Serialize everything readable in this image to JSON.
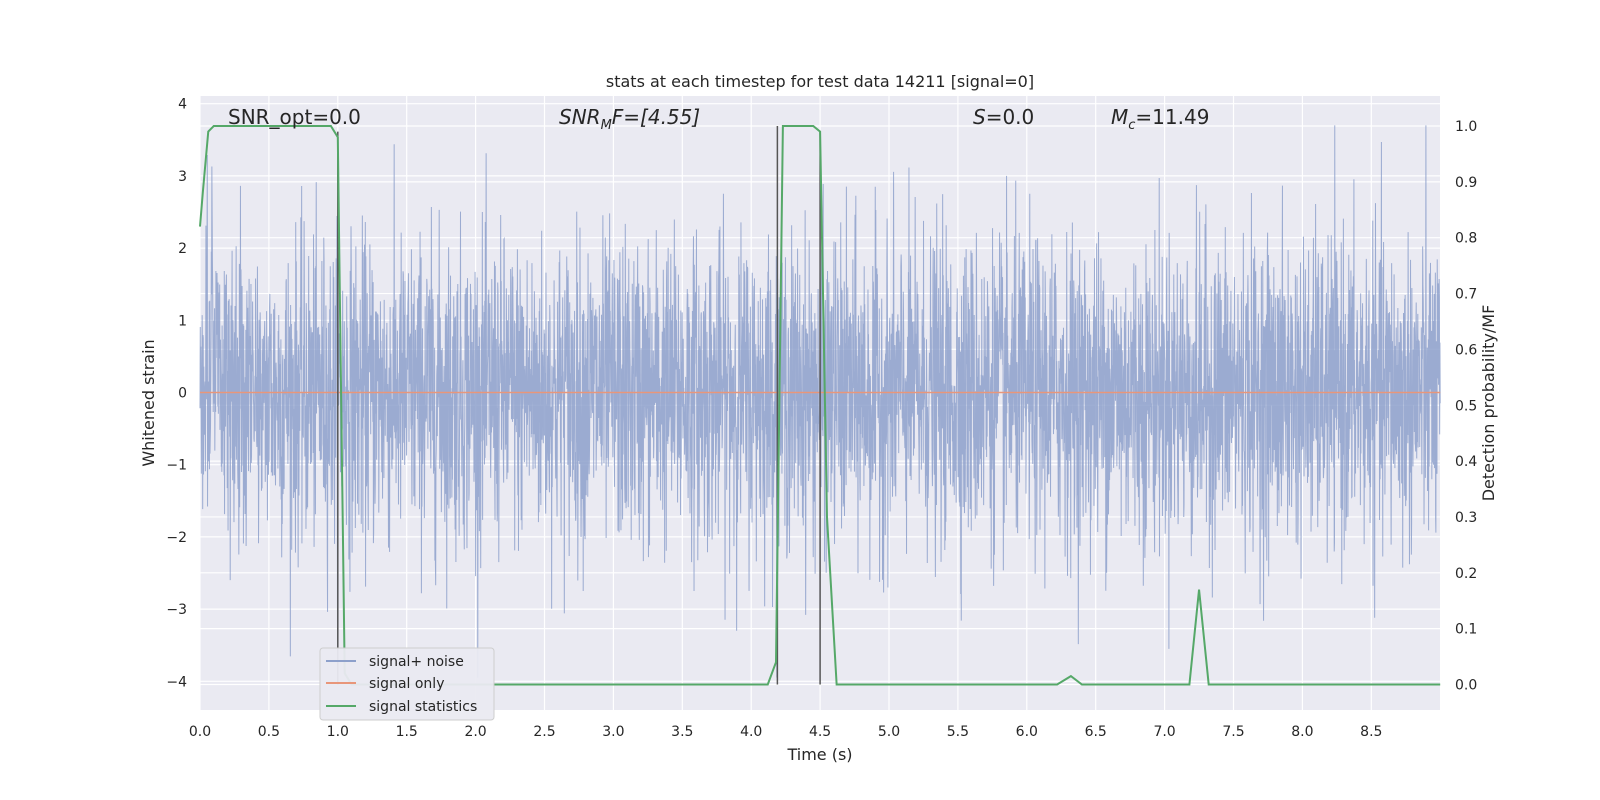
{
  "chart_data": {
    "type": "line",
    "title": "stats at each timestep for test data 14211 [signal=0]",
    "xlabel": "Time (s)",
    "ylabel_left": "Whitened strain",
    "ylabel_right": "Detection probability/MF",
    "xlim": [
      0.0,
      9.0
    ],
    "ylim_left": [
      -4.4,
      4.1
    ],
    "ylim_right": [
      -0.05,
      1.035
    ],
    "xticks": [
      "0.0",
      "0.5",
      "1.0",
      "1.5",
      "2.0",
      "2.5",
      "3.0",
      "3.5",
      "4.0",
      "4.5",
      "5.0",
      "5.5",
      "6.0",
      "6.5",
      "7.0",
      "7.5",
      "8.0",
      "8.5"
    ],
    "yticks_left": [
      "4",
      "3",
      "2",
      "1",
      "0",
      "−1",
      "−2",
      "−3",
      "−4"
    ],
    "yticks_right": [
      "1.0",
      "0.9",
      "0.8",
      "0.7",
      "0.6",
      "0.5",
      "0.4",
      "0.3",
      "0.2",
      "0.1",
      "0.0"
    ],
    "grid": true,
    "legend_position": "lower-left",
    "annotations": {
      "snr_opt": "SNR_opt=0.0",
      "snr_mf_main": "SNR",
      "snr_mf_sub": "M",
      "snr_mf_tail": "F=[4.55]",
      "s_main": "S",
      "s_tail": "=0.0",
      "mc_main": "M",
      "mc_sub": "c",
      "mc_tail": "=11.49"
    },
    "series": [
      {
        "name": "signal+ noise",
        "color": "#8da0cb",
        "style": "dense noise, approximately gaussian, std ~1.1, spikes up to ~3.7",
        "envelope_upper_typical": 2.5,
        "envelope_lower_typical": -2.5
      },
      {
        "name": "signal only",
        "color": "#e8967a",
        "x": [
          0.0,
          9.0
        ],
        "y": [
          0.0,
          0.0
        ]
      },
      {
        "name": "signal statistics",
        "color": "#55a868",
        "axis": "right",
        "x": [
          0.0,
          0.02,
          0.06,
          0.1,
          0.15,
          0.3,
          0.5,
          0.7,
          0.95,
          1.0,
          1.05,
          1.1,
          1.5,
          2.0,
          2.5,
          3.0,
          3.5,
          4.0,
          4.12,
          4.18,
          4.23,
          4.27,
          4.45,
          4.5,
          4.55,
          4.62,
          5.0,
          5.5,
          6.0,
          6.22,
          6.32,
          6.4,
          6.5,
          7.0,
          7.18,
          7.25,
          7.32,
          7.5,
          8.0,
          9.0
        ],
        "y": [
          0.82,
          0.88,
          0.99,
          1.0,
          1.0,
          1.0,
          1.0,
          1.0,
          1.0,
          0.98,
          0.02,
          0.0,
          0.0,
          0.0,
          0.0,
          0.0,
          0.0,
          0.0,
          0.0,
          0.04,
          1.0,
          1.0,
          1.0,
          0.99,
          0.3,
          0.0,
          0.0,
          0.0,
          0.0,
          0.0,
          0.015,
          0.0,
          0.0,
          0.0,
          0.0,
          0.17,
          0.0,
          0.0,
          0.0,
          0.0
        ]
      }
    ],
    "vertical_markers": [
      {
        "x": 1.0,
        "y_top": 0.99,
        "y_bottom": 0.0
      },
      {
        "x": 4.19,
        "y_top": 1.0,
        "y_bottom": 0.0
      },
      {
        "x": 4.5,
        "y_top": 0.99,
        "y_bottom": 0.0
      }
    ]
  }
}
